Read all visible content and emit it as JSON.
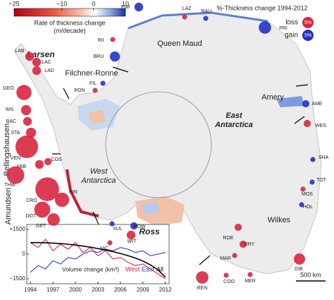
{
  "colorbar": {
    "title": "Rate of thickness change",
    "unit": "(m/decade)",
    "lim": [
      -25,
      10
    ],
    "ticks": [
      {
        "value": -25,
        "label": "−25"
      },
      {
        "value": -10,
        "label": "−10"
      },
      0,
      10
    ]
  },
  "legend": {
    "title": "%-Thickness change 1994-2012",
    "loss": "loss",
    "gain": "gain",
    "reference": {
      "value": 5,
      "label": "5%"
    }
  },
  "regions": [
    [
      "Queen Maud"
    ],
    [
      "Filchner-Ronne"
    ],
    [
      "Larsen"
    ],
    [
      "Bellingshausen"
    ],
    [
      "Amundsen"
    ],
    [
      "Amery"
    ],
    [
      "Ross"
    ],
    [
      "Wilkes"
    ],
    [
      "West",
      "Antarctica"
    ],
    [
      "East",
      "Antarctica"
    ]
  ],
  "shelves": [
    {
      "label": "FIM",
      "change": 3
    },
    {
      "label": "LAZ",
      "change": -1
    },
    {
      "label": "BAU",
      "change": 1
    },
    {
      "label": "PRI",
      "change": 6
    },
    {
      "label": "RII",
      "change": -1
    },
    {
      "label": "BRU",
      "change": 4
    },
    {
      "label": "FIL",
      "change": 1
    },
    {
      "label": "RON",
      "change": -1
    },
    {
      "label": "LAB",
      "change": -3
    },
    {
      "label": "LAC",
      "change": -3
    },
    {
      "label": "LAD",
      "change": -3
    },
    {
      "label": "GEO",
      "change": -9
    },
    {
      "label": "WIL",
      "change": -4
    },
    {
      "label": "BAC",
      "change": -3
    },
    {
      "label": "STA",
      "change": -4
    },
    {
      "label": "VEN",
      "change": -20
    },
    {
      "label": "ABB",
      "change": -3
    },
    {
      "label": "COS",
      "change": -2
    },
    {
      "label": "PIN",
      "change": -8
    },
    {
      "label": "THW",
      "change": -12
    },
    {
      "label": "CRO",
      "change": -22
    },
    {
      "label": "DOT",
      "change": -10
    },
    {
      "label": "GET",
      "change": -6
    },
    {
      "label": "SUL",
      "change": 1
    },
    {
      "label": "NIC",
      "change": -1
    },
    {
      "label": "ROW",
      "change": 2
    },
    {
      "label": "WIT",
      "change": -3
    },
    {
      "label": "ROE",
      "change": -2
    },
    {
      "label": "DRY",
      "change": -2
    },
    {
      "label": "MAR",
      "change": -1
    },
    {
      "label": "REN",
      "change": -6
    },
    {
      "label": "COO",
      "change": -1
    },
    {
      "label": "MER",
      "change": -1
    },
    {
      "label": "DIB",
      "change": -5
    },
    {
      "label": "AME",
      "change": 2
    },
    {
      "label": "WES",
      "change": -2
    },
    {
      "label": "SHA",
      "change": 1
    },
    {
      "label": "TOT",
      "change": 1
    },
    {
      "label": "MOS",
      "change": -1
    },
    {
      "label": "HOL",
      "change": 1
    }
  ],
  "scale_bar": "500 km",
  "chart_data": {
    "type": "line",
    "y_label": "Volume change (km³)",
    "x": [
      1994,
      1995,
      1996,
      1997,
      1998,
      1999,
      2000,
      2001,
      2002,
      2003,
      2004,
      2005,
      2006,
      2007,
      2008,
      2009,
      2010,
      2011,
      2012
    ],
    "xlim": [
      1993.5,
      2012.5
    ],
    "xticks": [
      1994,
      1997,
      2000,
      2003,
      2006,
      2009,
      2012
    ],
    "ylim": [
      -1800,
      1800
    ],
    "yticks": [
      {
        "value": 1500,
        "label": "+1500"
      },
      0,
      {
        "value": -1500,
        "label": "−1500"
      }
    ],
    "series": [
      {
        "name": "West",
        "color": "#d9263f",
        "values": [
          700,
          400,
          900,
          200,
          600,
          300,
          700,
          100,
          400,
          -100,
          200,
          -300,
          -200,
          -500,
          -700,
          -600,
          -900,
          -1200,
          -1500
        ]
      },
      {
        "name": "East",
        "color": "#1f3fbf",
        "values": [
          -1100,
          -700,
          -900,
          -400,
          -600,
          -200,
          -300,
          0,
          200,
          100,
          300,
          200,
          400,
          300,
          100,
          200,
          -100,
          0,
          100
        ]
      },
      {
        "name": "All",
        "color": "#000000",
        "values": [
          700,
          700,
          690,
          670,
          640,
          600,
          550,
          490,
          420,
          340,
          250,
          150,
          40,
          -90,
          -240,
          -420,
          -650,
          -950,
          -1400
        ]
      }
    ]
  }
}
